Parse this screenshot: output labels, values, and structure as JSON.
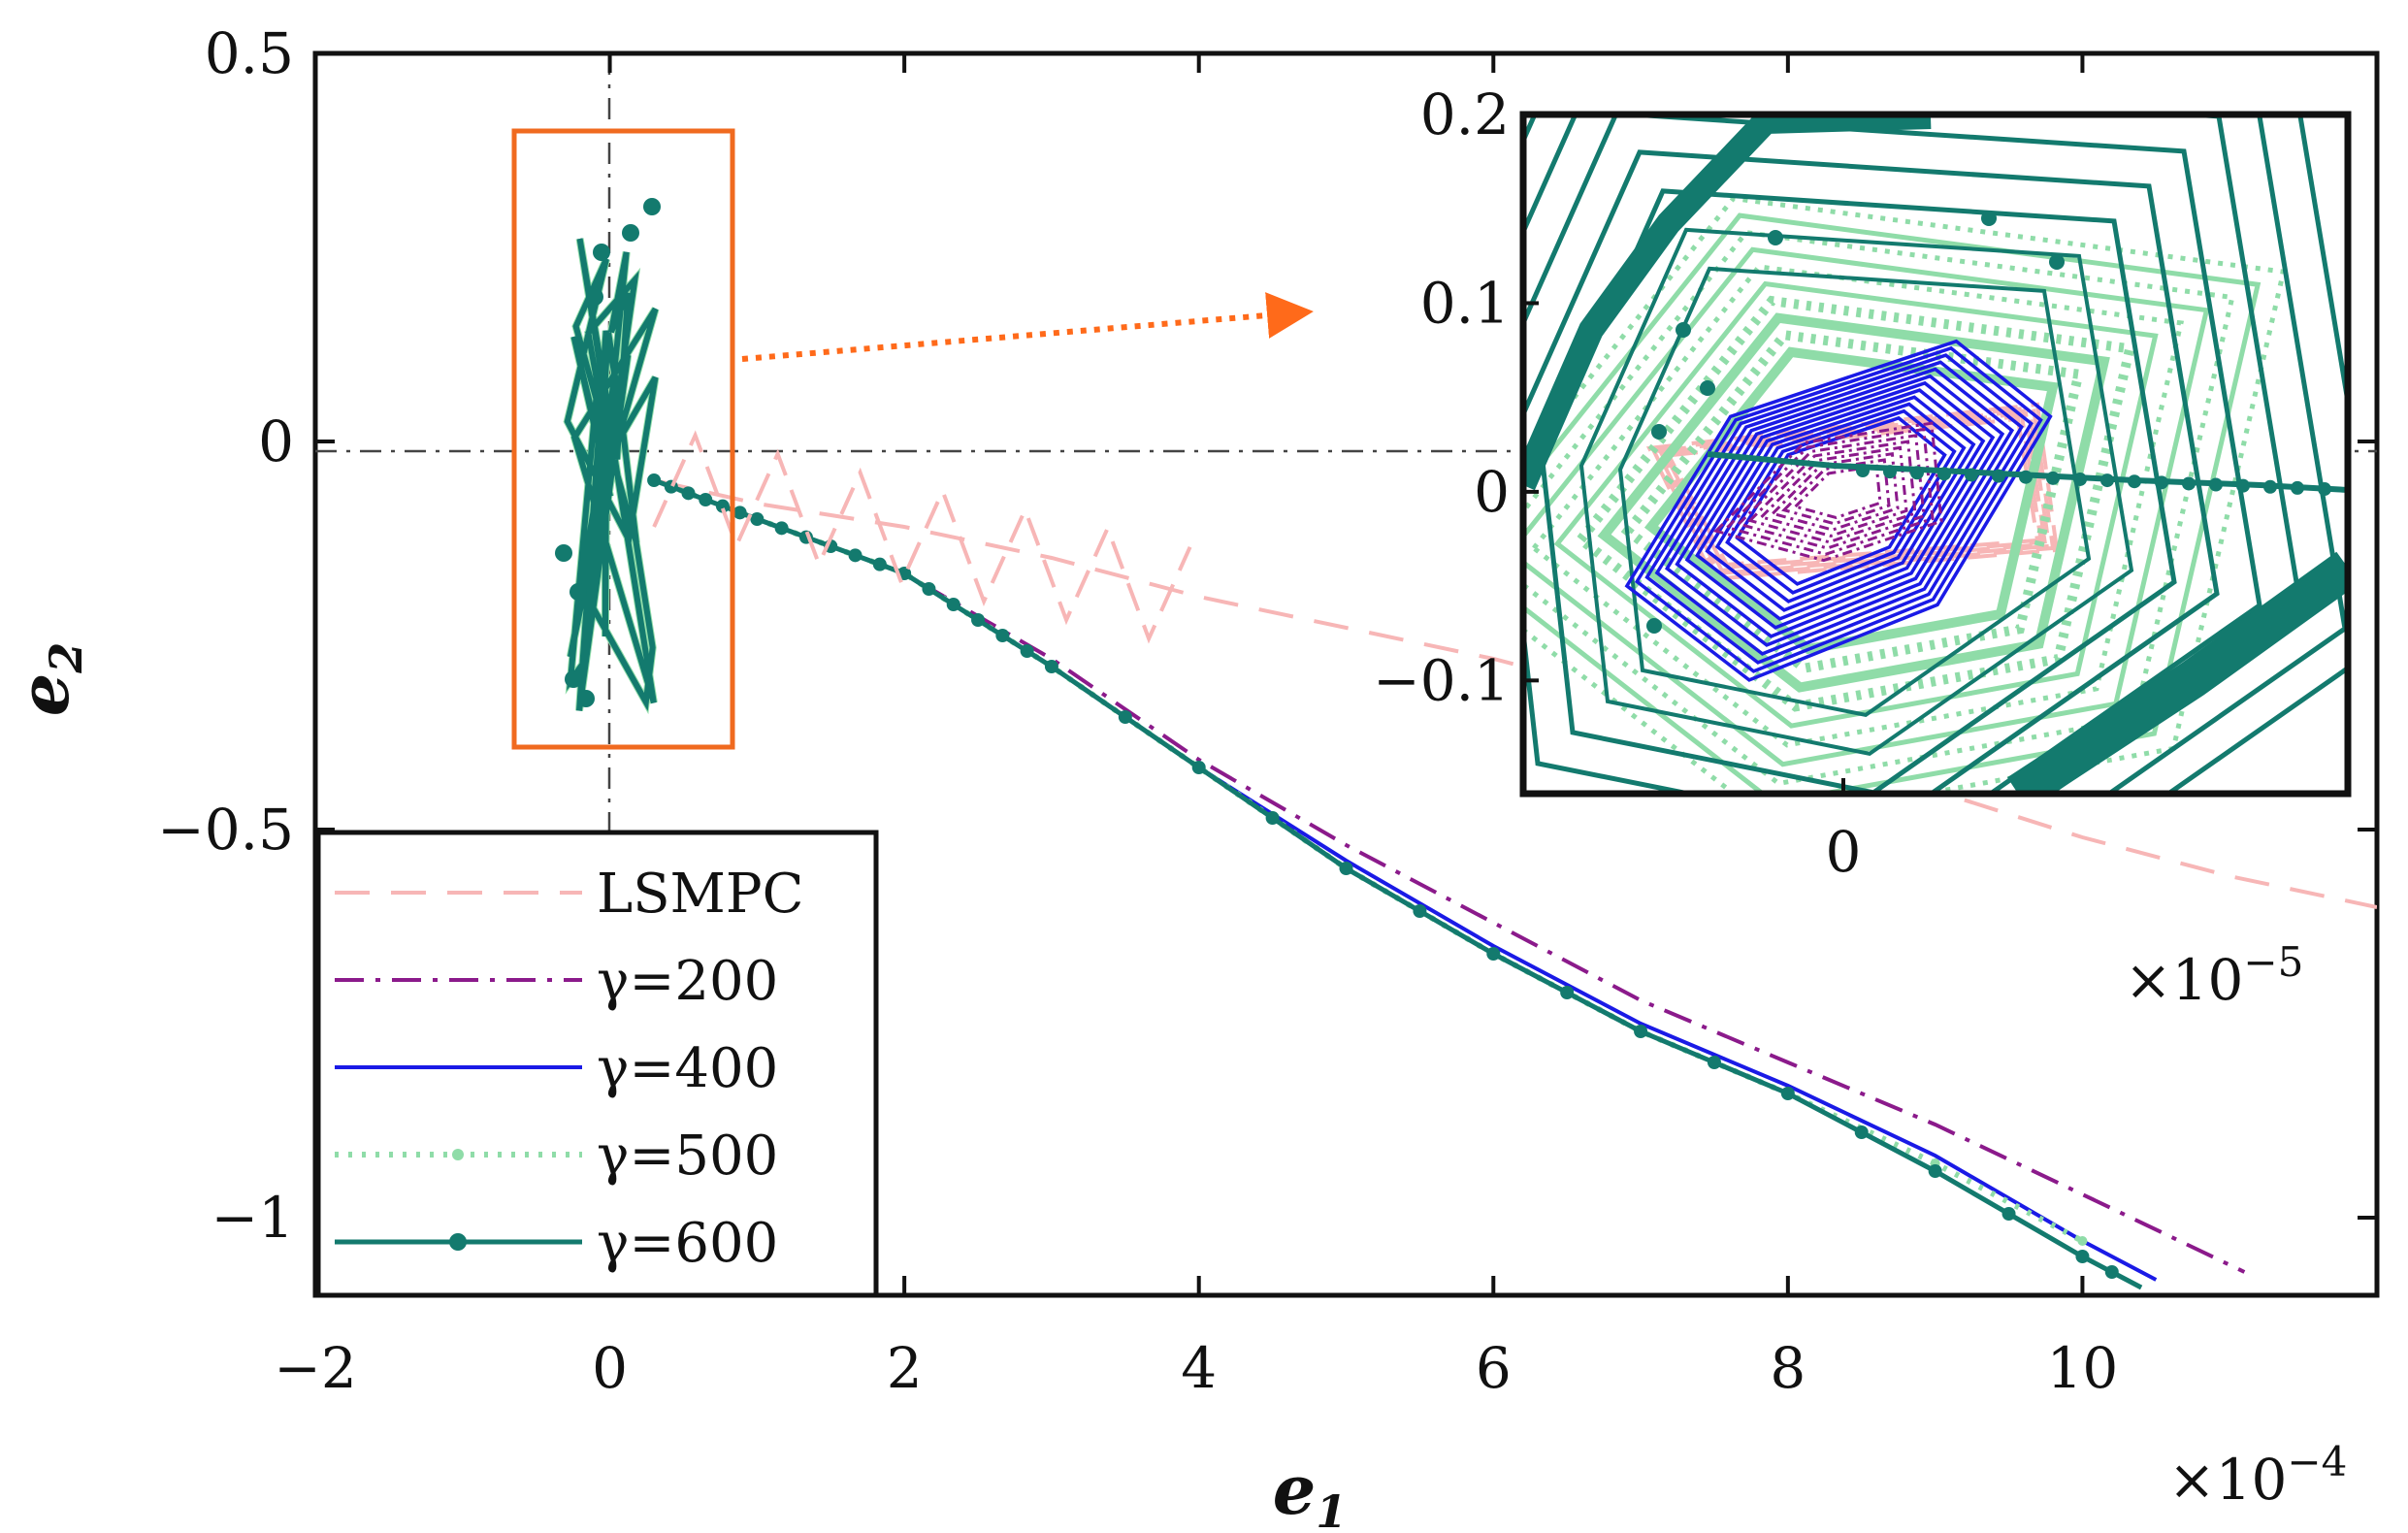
{
  "chart_data": {
    "type": "line",
    "xlabel": "e",
    "xlabel_sub": "1",
    "ylabel": "e",
    "ylabel_sub": "2",
    "x_multiplier": "×10",
    "x_multiplier_exp": "−4",
    "xlim": [
      -2,
      12
    ],
    "ylim": [
      -1.1,
      0.5
    ],
    "xticks": [
      -2,
      0,
      2,
      4,
      6,
      8,
      10
    ],
    "xtick_labels": [
      "−2",
      "0",
      "2",
      "4",
      "6",
      "8",
      "10"
    ],
    "yticks": [
      0.5,
      0,
      -0.5,
      -1
    ],
    "ytick_labels": [
      "0.5",
      "0",
      "−0.5",
      "−1"
    ],
    "series": [
      {
        "name": "LSMPC",
        "color": "#f7b6b6",
        "style": "dashed",
        "x": [
          0.3,
          1.0,
          2.0,
          3.0,
          4.0,
          5.0,
          6.0,
          7.0,
          8.0,
          9.0,
          10.0,
          11.0,
          12.0
        ],
        "y": [
          -0.05,
          -0.08,
          -0.11,
          -0.15,
          -0.2,
          -0.24,
          -0.28,
          -0.33,
          -0.39,
          -0.45,
          -0.51,
          -0.56,
          -0.6
        ]
      },
      {
        "name": "γ=200",
        "color": "#8b1a8b",
        "style": "dashdot",
        "x": [
          0.3,
          1,
          2,
          3,
          4,
          5,
          6,
          7,
          8,
          9,
          10,
          11.1
        ],
        "y": [
          -0.05,
          -0.1,
          -0.17,
          -0.28,
          -0.41,
          -0.52,
          -0.62,
          -0.72,
          -0.8,
          -0.88,
          -0.97,
          -1.07
        ]
      },
      {
        "name": "γ=400",
        "color": "#1a1ae6",
        "style": "solid",
        "x": [
          0.3,
          1,
          2,
          3,
          4,
          5,
          6,
          7,
          8,
          9,
          10,
          10.5
        ],
        "y": [
          -0.05,
          -0.1,
          -0.17,
          -0.29,
          -0.42,
          -0.54,
          -0.65,
          -0.75,
          -0.83,
          -0.92,
          -1.03,
          -1.08
        ]
      },
      {
        "name": "γ=500",
        "color": "#8fdca8",
        "style": "dotted",
        "x": [
          0.3,
          1,
          2,
          3,
          4,
          5,
          6,
          7,
          8,
          9,
          10
        ],
        "y": [
          -0.05,
          -0.1,
          -0.17,
          -0.29,
          -0.42,
          -0.55,
          -0.66,
          -0.76,
          -0.84,
          -0.93,
          -1.03
        ]
      },
      {
        "name": "γ=600",
        "color": "#137a6e",
        "style": "solid-marker",
        "x": [
          0.3,
          1,
          2,
          3,
          4,
          5,
          6,
          7,
          8,
          9,
          10,
          10.4
        ],
        "y": [
          -0.05,
          -0.1,
          -0.17,
          -0.29,
          -0.42,
          -0.55,
          -0.66,
          -0.76,
          -0.84,
          -0.94,
          -1.05,
          -1.09
        ]
      }
    ],
    "legend_position": "bottom-left",
    "inset": {
      "ylim": [
        -0.16,
        0.2
      ],
      "yticks": [
        0.2,
        0.1,
        0,
        -0.1
      ],
      "ytick_labels": [
        "0.2",
        "0.1",
        "0",
        "−0.1"
      ],
      "xtick_labels": [
        "0"
      ],
      "x_multiplier": "×10",
      "x_multiplier_exp": "−5"
    }
  }
}
